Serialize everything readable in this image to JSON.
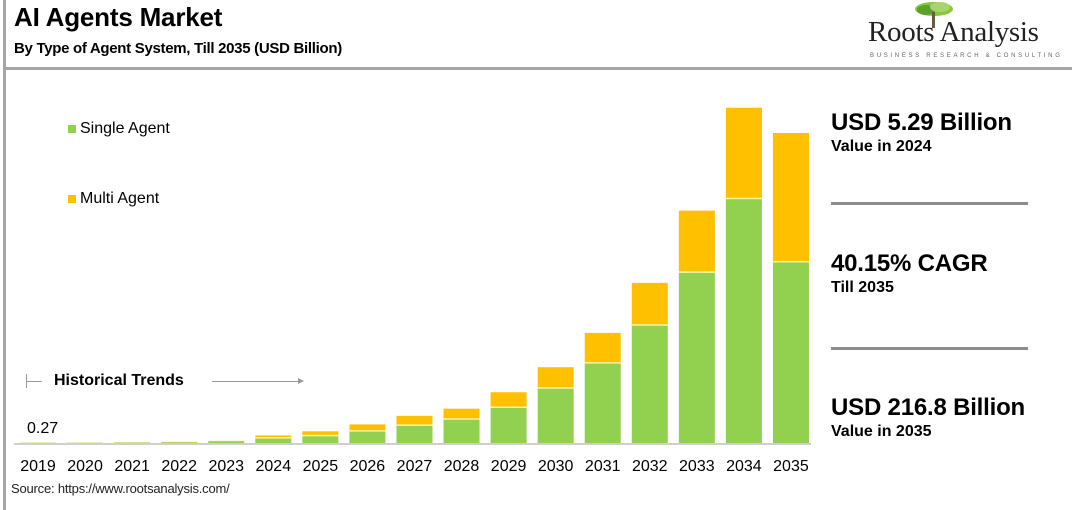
{
  "header": {
    "title": "AI Agents Market",
    "subtitle": "By Type of Agent System, Till 2035 (USD Billion)"
  },
  "logo": {
    "name": "Roots Analysis",
    "tagline": "BUSINESS RESEARCH & CONSULTING",
    "icon": "tree-icon"
  },
  "annotations": {
    "historical_label": "Historical Trends",
    "value_2019": "0.27"
  },
  "stats": [
    {
      "main": "USD 5.29 Billion",
      "sub": "Value in 2024"
    },
    {
      "main": "40.15% CAGR",
      "sub": "Till 2035"
    },
    {
      "main": "USD 216.8 Billion",
      "sub": "Value in 2035"
    }
  ],
  "source": "Source: https://www.rootsanalysis.com/",
  "colors": {
    "single_agent": "#92d050",
    "multi_agent": "#ffc000",
    "axis": "#bfbfbf",
    "rule": "#a6a6a6"
  },
  "chart_data": {
    "type": "bar",
    "stacked": true,
    "title": "AI Agents Market",
    "subtitle": "By Type of Agent System, Till 2035 (USD Billion)",
    "xlabel": "",
    "ylabel": "USD Billion",
    "categories": [
      "2019",
      "2020",
      "2021",
      "2022",
      "2023",
      "2024",
      "2025",
      "2026",
      "2027",
      "2028",
      "2029",
      "2030",
      "2031",
      "2032",
      "2033",
      "2034",
      "2035"
    ],
    "series": [
      {
        "name": "Single Agent",
        "color": "#92d050",
        "values": [
          0.18,
          0.2,
          0.3,
          0.5,
          1.0,
          3.6,
          5.2,
          8.5,
          12.5,
          16.8,
          25.0,
          38.5,
          56.0,
          82.5,
          119.5,
          171.0,
          126.8
        ]
      },
      {
        "name": "Multi Agent",
        "color": "#ffc000",
        "values": [
          0.09,
          0.1,
          0.15,
          0.25,
          0.5,
          1.69,
          3.0,
          4.5,
          6.5,
          7.2,
          10.5,
          14.5,
          21.0,
          29.5,
          43.0,
          63.5,
          90.0
        ]
      }
    ],
    "totals": [
      0.27,
      0.3,
      0.45,
      0.75,
      1.5,
      5.29,
      8.2,
      13.0,
      19.0,
      24.0,
      35.5,
      53.0,
      77.0,
      112.0,
      162.5,
      234.5,
      216.8
    ],
    "ylim": [
      0,
      216.8
    ],
    "grid": false,
    "legend": {
      "position": "top-left",
      "entries": [
        "Single Agent",
        "Multi Agent"
      ]
    },
    "data_labels": {
      "2019": "0.27"
    },
    "annotations": [
      "Historical Trends",
      "USD 5.29 Billion Value in 2024",
      "40.15% CAGR Till 2035",
      "USD 216.8 Billion Value in 2035"
    ]
  }
}
